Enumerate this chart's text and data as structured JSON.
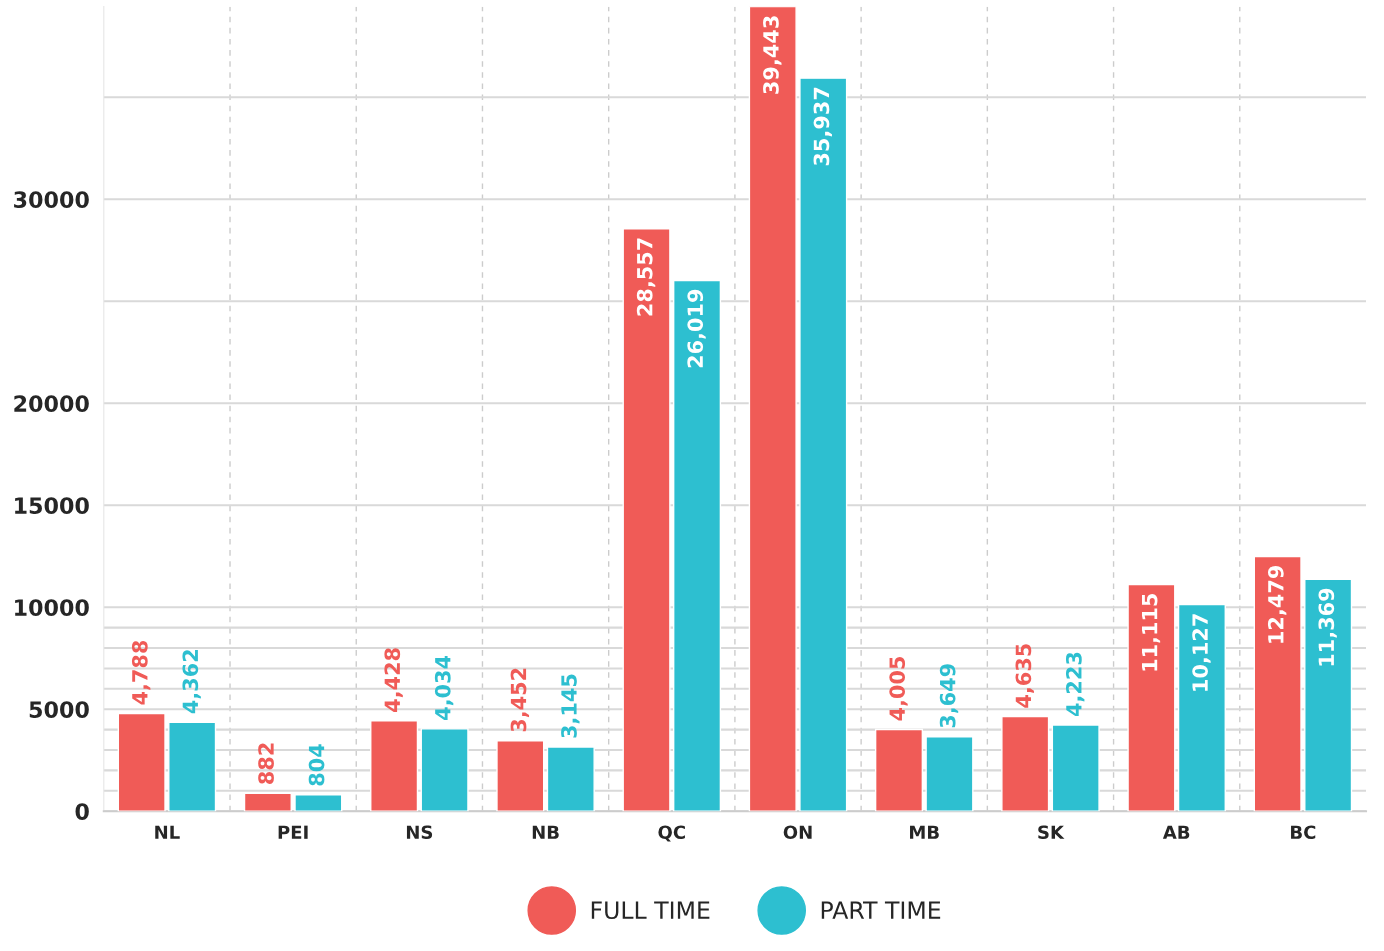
{
  "chart_data": {
    "type": "bar",
    "categories": [
      "NL",
      "PEI",
      "NS",
      "NB",
      "QC",
      "ON",
      "MB",
      "SK",
      "AB",
      "BC"
    ],
    "series": [
      {
        "name": "FULL TIME",
        "color": "#f05b57",
        "values": [
          4788,
          882,
          4428,
          3452,
          28557,
          39443,
          4005,
          4635,
          11115,
          12479
        ],
        "value_labels": [
          "4,788",
          "882",
          "4,428",
          "3,452",
          "28,557",
          "39,443",
          "4,005",
          "4,635",
          "11,115",
          "12,479"
        ]
      },
      {
        "name": "PART TIME",
        "color": "#2dbfd0",
        "values": [
          4362,
          804,
          4034,
          3145,
          26019,
          35937,
          3649,
          4223,
          10127,
          11369
        ],
        "value_labels": [
          "4,362",
          "804",
          "4,034",
          "3,145",
          "26,019",
          "35,937",
          "3,649",
          "4,223",
          "10,127",
          "11,369"
        ]
      }
    ],
    "ylim": [
      0,
      39443
    ],
    "yticks": [
      0,
      {
        "value": 1000,
        "label": null
      },
      {
        "value": 2000,
        "label": null
      },
      {
        "value": 3000,
        "label": null
      },
      {
        "value": 4000,
        "label": null
      },
      5000,
      {
        "value": 6000,
        "label": null
      },
      {
        "value": 7000,
        "label": null
      },
      {
        "value": 8000,
        "label": null
      },
      {
        "value": 9000,
        "label": null
      },
      10000,
      15000,
      20000,
      {
        "value": 25000,
        "label": null
      },
      30000,
      {
        "value": 35000,
        "label": null
      }
    ],
    "grid": true,
    "legend": "bottom"
  }
}
